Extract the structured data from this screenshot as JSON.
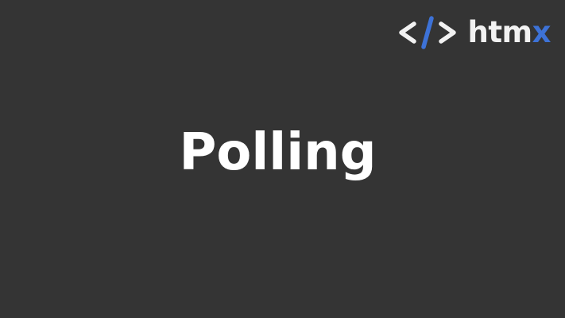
{
  "logo": {
    "main": "htm",
    "accent": "x",
    "colors": {
      "text": "#f2f2f2",
      "accent": "#3d72d7",
      "brackets": "#f2f2f2",
      "slash": "#3d72d7"
    },
    "icon": "code-brackets-icon"
  },
  "slide": {
    "title": "Polling",
    "background": "#343434"
  }
}
